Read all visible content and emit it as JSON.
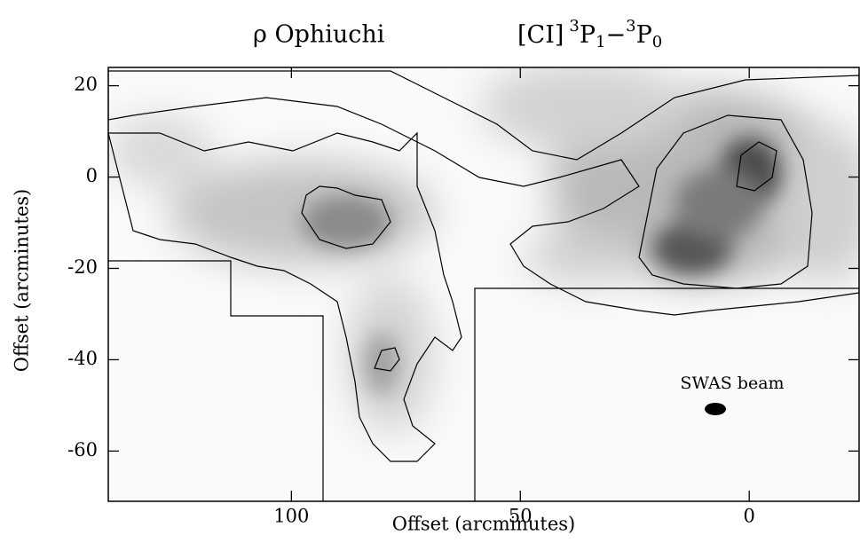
{
  "chart_data": {
    "type": "map",
    "title": {
      "source": "ρ Ophiuchi",
      "line": "[CI]",
      "upper_sup": "3",
      "upper": "P",
      "upper_sub": "1",
      "sep": "−",
      "lower_sup": "3",
      "lower": "P",
      "lower_sub": "0"
    },
    "x_label": "Offset (arcminutes)",
    "y_label": "Offset (arcminutes)",
    "annotation": "SWAS beam",
    "xlim": [
      140,
      -24
    ],
    "xticks": [
      100,
      50,
      0
    ],
    "ylim": [
      -71,
      24
    ],
    "yticks": [
      20,
      0,
      -20,
      -40,
      -60
    ]
  }
}
